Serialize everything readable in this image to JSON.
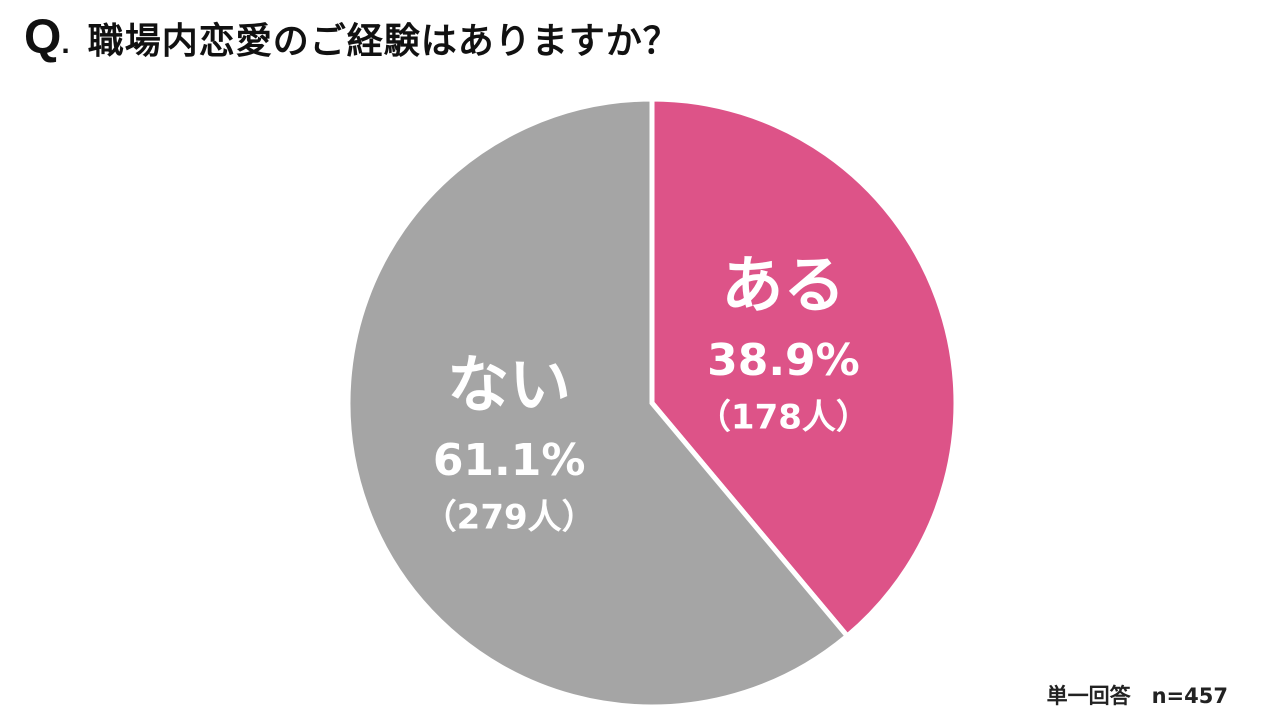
{
  "question": {
    "prefix": "Q",
    "dot": ".",
    "text": "職場内恋愛のご経験はありますか？"
  },
  "chart_data": {
    "type": "pie",
    "slices": [
      {
        "label": "ある",
        "percent": 38.9,
        "percent_text": "38.9%",
        "count_text": "（178人）",
        "color": "#dd5388"
      },
      {
        "label": "ない",
        "percent": 61.1,
        "percent_text": "61.1%",
        "count_text": "（279人）",
        "color": "#a5a5a5"
      }
    ],
    "start": "12 o'clock",
    "direction": "clockwise"
  },
  "footnote": "単一回答　n=457"
}
